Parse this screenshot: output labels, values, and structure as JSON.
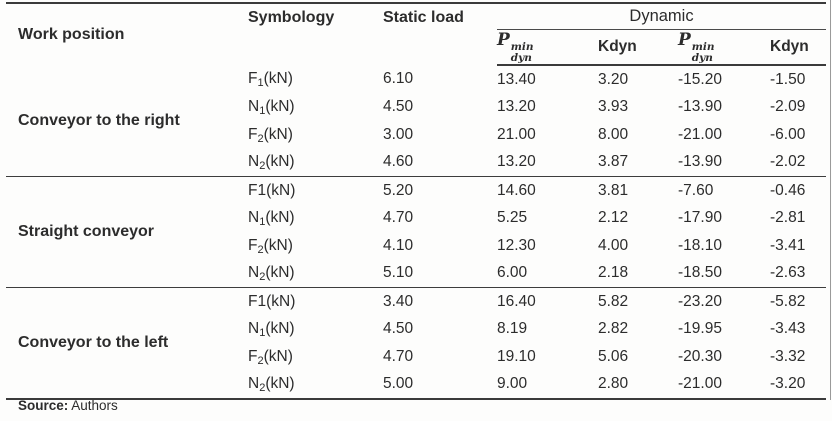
{
  "header": {
    "work_position": "Work position",
    "symbology": "Symbology",
    "static_load": "Static load",
    "dynamic": "Dynamic",
    "p_base": "P",
    "p_sup": "min",
    "p_sub": "dyn",
    "kdyn": "Kdyn"
  },
  "groups": [
    {
      "position": "Conveyor to the right",
      "rows": [
        {
          "sym_base": "F",
          "sym_sub": "1",
          "sym_unit": "(kN)",
          "static": "6.10",
          "dyn": [
            "13.40",
            "3.20",
            "-15.20",
            "-1.50"
          ]
        },
        {
          "sym_base": "N",
          "sym_sub": "1",
          "sym_unit": "(kN)",
          "static": "4.50",
          "dyn": [
            "13.20",
            "3.93",
            "-13.90",
            "-2.09"
          ]
        },
        {
          "sym_base": "F",
          "sym_sub": "2",
          "sym_unit": "(kN)",
          "static": "3.00",
          "dyn": [
            "21.00",
            "8.00",
            "-21.00",
            "-6.00"
          ]
        },
        {
          "sym_base": "N",
          "sym_sub": "2",
          "sym_unit": "(kN)",
          "static": "4.60",
          "dyn": [
            "13.20",
            "3.87",
            "-13.90",
            "-2.02"
          ]
        }
      ]
    },
    {
      "position": "Straight conveyor",
      "rows": [
        {
          "sym_base": "F1",
          "sym_sub": "",
          "sym_unit": "(kN)",
          "static": "5.20",
          "dyn": [
            "14.60",
            "3.81",
            "-7.60",
            "-0.46"
          ]
        },
        {
          "sym_base": "N",
          "sym_sub": "1",
          "sym_unit": "(kN)",
          "static": "4.70",
          "dyn": [
            "5.25",
            "2.12",
            "-17.90",
            "-2.81"
          ]
        },
        {
          "sym_base": "F",
          "sym_sub": "2",
          "sym_unit": "(kN)",
          "static": "4.10",
          "dyn": [
            "12.30",
            "4.00",
            "-18.10",
            "-3.41"
          ]
        },
        {
          "sym_base": "N",
          "sym_sub": "2",
          "sym_unit": "(kN)",
          "static": "5.10",
          "dyn": [
            "6.00",
            "2.18",
            "-18.50",
            "-2.63"
          ]
        }
      ]
    },
    {
      "position": "Conveyor to the left",
      "rows": [
        {
          "sym_base": "F1",
          "sym_sub": "",
          "sym_unit": "(kN)",
          "static": "3.40",
          "dyn": [
            "16.40",
            "5.82",
            "-23.20",
            "-5.82"
          ]
        },
        {
          "sym_base": "N",
          "sym_sub": "1",
          "sym_unit": "(kN)",
          "static": "4.50",
          "dyn": [
            "8.19",
            "2.82",
            "-19.95",
            "-3.43"
          ]
        },
        {
          "sym_base": "F",
          "sym_sub": "2",
          "sym_unit": "(kN)",
          "static": "4.70",
          "dyn": [
            "19.10",
            "5.06",
            "-20.30",
            "-3.32"
          ]
        },
        {
          "sym_base": "N",
          "sym_sub": "2",
          "sym_unit": "(kN)",
          "static": "5.00",
          "dyn": [
            "9.00",
            "2.80",
            "-21.00",
            "-3.20"
          ]
        }
      ]
    }
  ],
  "source": {
    "label": "Source:",
    "value": "Authors"
  },
  "colors": {
    "rule": "#3b3b3b",
    "text": "#2c2c2c",
    "background": "#fdfdfc"
  }
}
